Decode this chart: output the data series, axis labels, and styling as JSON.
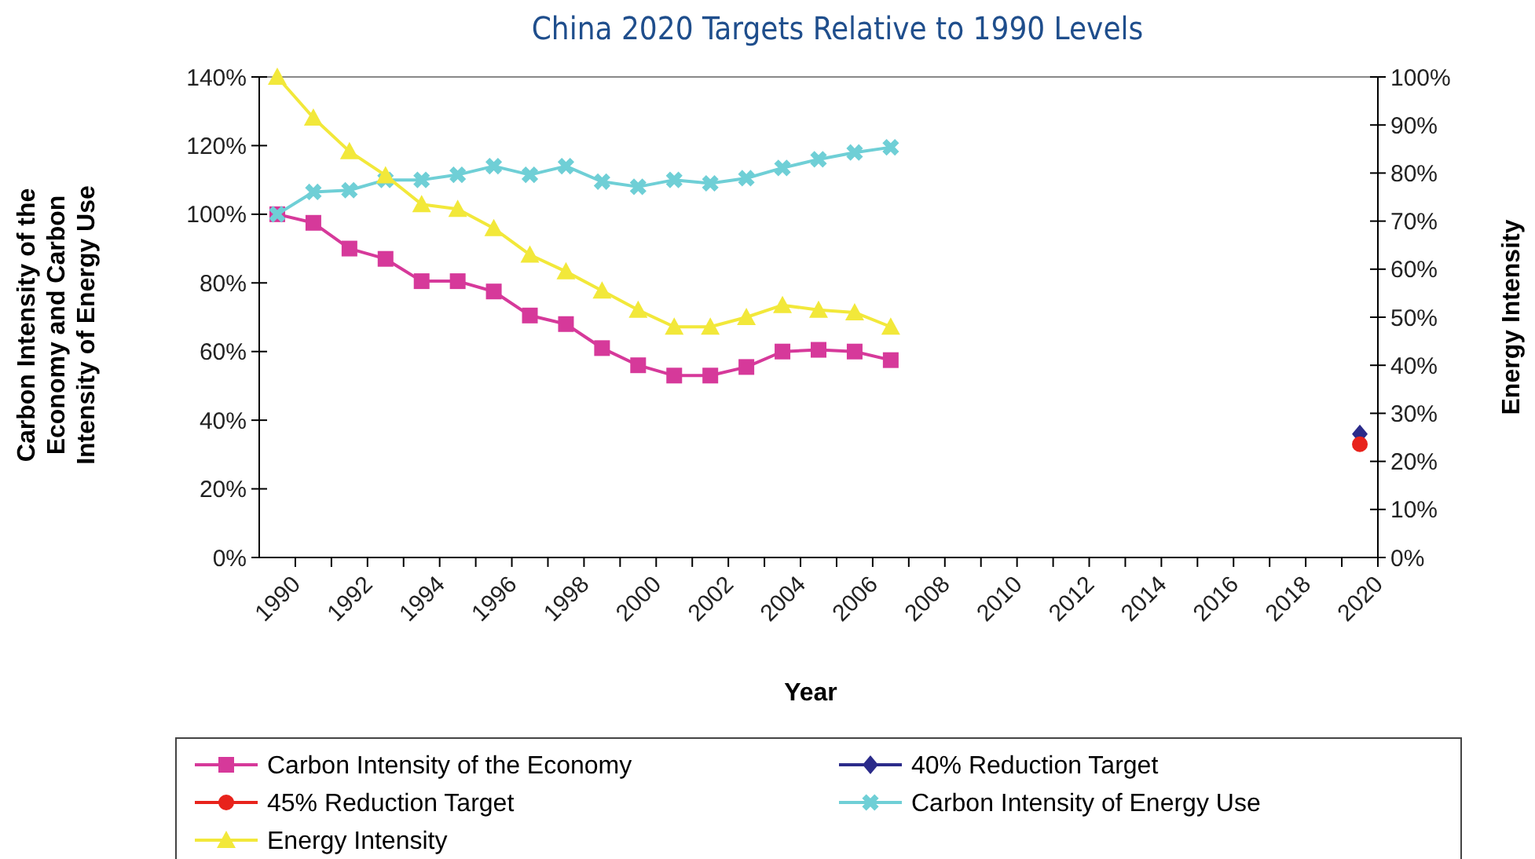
{
  "chart_data": {
    "type": "line",
    "title": "China 2020 Targets Relative to 1990 Levels",
    "xlabel": "Year",
    "ylabel": "Carbon Intensity of the Economy and Carbon Intensity of Energy Use",
    "y2label": "Energy Intensity",
    "categories": [
      "1990",
      null,
      "1992",
      null,
      "1994",
      null,
      "1996",
      null,
      "1998",
      null,
      "2000",
      null,
      "2002",
      null,
      "2004",
      null,
      "2006",
      null,
      "2008",
      null,
      "2010",
      null,
      "2012",
      null,
      "2014",
      null,
      "2016",
      null,
      "2018",
      null,
      "2020"
    ],
    "ylim": [
      0,
      140
    ],
    "yticks": [
      {
        "value": 0,
        "label": "0%"
      },
      {
        "value": 20,
        "label": "20%"
      },
      {
        "value": 40,
        "label": "40%"
      },
      {
        "value": 60,
        "label": "60%"
      },
      {
        "value": 80,
        "label": "80%"
      },
      {
        "value": 100,
        "label": "100%"
      },
      {
        "value": 120,
        "label": "120%"
      },
      {
        "value": 140,
        "label": "140%"
      }
    ],
    "y2lim": [
      0,
      100
    ],
    "y2ticks": [
      {
        "value": 0,
        "label": "0%"
      },
      {
        "value": 10,
        "label": "10%"
      },
      {
        "value": 20,
        "label": "20%"
      },
      {
        "value": 30,
        "label": "30%"
      },
      {
        "value": 40,
        "label": "40%"
      },
      {
        "value": 50,
        "label": "50%"
      },
      {
        "value": 60,
        "label": "60%"
      },
      {
        "value": 70,
        "label": "70%"
      },
      {
        "value": 80,
        "label": "80%"
      },
      {
        "value": 90,
        "label": "90%"
      },
      {
        "value": 100,
        "label": "100%"
      }
    ],
    "grid": false,
    "legend": "bottom",
    "series": [
      {
        "name": "Carbon Intensity of the Economy",
        "color": "#d6399a",
        "marker": "square",
        "values": [
          100,
          97.5,
          90,
          87,
          80.5,
          80.5,
          77.5,
          70.5,
          68,
          61,
          56,
          53,
          53,
          55.5,
          60,
          60.5,
          60,
          57.5,
          null,
          null,
          null,
          null,
          null,
          null,
          null,
          null,
          null,
          null,
          null,
          null,
          null
        ]
      },
      {
        "name": "40% Reduction Target",
        "color": "#2b2b8a",
        "marker": "diamond",
        "values": [
          null,
          null,
          null,
          null,
          null,
          null,
          null,
          null,
          null,
          null,
          null,
          null,
          null,
          null,
          null,
          null,
          null,
          null,
          null,
          null,
          null,
          null,
          null,
          null,
          null,
          null,
          null,
          null,
          null,
          null,
          36
        ]
      },
      {
        "name": "45% Reduction Target",
        "color": "#e8231c",
        "marker": "circle",
        "values": [
          null,
          null,
          null,
          null,
          null,
          null,
          null,
          null,
          null,
          null,
          null,
          null,
          null,
          null,
          null,
          null,
          null,
          null,
          null,
          null,
          null,
          null,
          null,
          null,
          null,
          null,
          null,
          null,
          null,
          null,
          33
        ]
      },
      {
        "name": "Carbon Intensity of Energy Use",
        "color": "#6fcfd6",
        "marker": "cross",
        "values": [
          100,
          106.5,
          107,
          110,
          110,
          111.5,
          114,
          111.5,
          114,
          109.5,
          108,
          110,
          109,
          110.5,
          113.5,
          116,
          118,
          119.5,
          null,
          null,
          null,
          null,
          null,
          null,
          null,
          null,
          null,
          null,
          null,
          null,
          null
        ]
      },
      {
        "name": "Energy Intensity",
        "color": "#f2e83a",
        "marker": "triangle",
        "axis": "y2",
        "values": [
          100,
          91.5,
          84.5,
          79.5,
          73.5,
          72.5,
          68.5,
          63,
          59.5,
          55.5,
          51.5,
          48,
          48,
          50,
          52.5,
          51.5,
          51,
          48,
          null,
          null,
          null,
          null,
          null,
          null,
          null,
          null,
          null,
          null,
          null,
          null,
          null
        ]
      }
    ]
  }
}
